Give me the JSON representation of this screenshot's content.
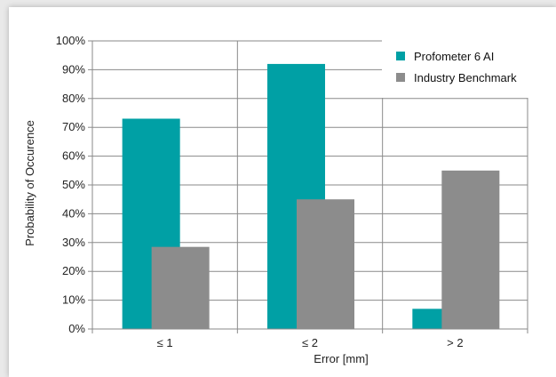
{
  "chart_data": {
    "type": "bar",
    "categories": [
      "≤ 1",
      "≤ 2",
      "> 2"
    ],
    "series": [
      {
        "name": "Profometer 6 AI",
        "values": [
          73,
          92,
          7
        ],
        "color": "#00a0a5"
      },
      {
        "name": "Industry Benchmark",
        "values": [
          28.5,
          45,
          55
        ],
        "color": "#8c8c8c"
      }
    ],
    "xlabel": "Error [mm]",
    "ylabel": "Probability of Occurence",
    "ylim": [
      0,
      100
    ],
    "yticks": [
      "0%",
      "10%",
      "20%",
      "30%",
      "40%",
      "50%",
      "60%",
      "70%",
      "80%",
      "90%",
      "100%"
    ],
    "grid": "horizontal and vertical category separators",
    "legend_position": "top-right"
  }
}
